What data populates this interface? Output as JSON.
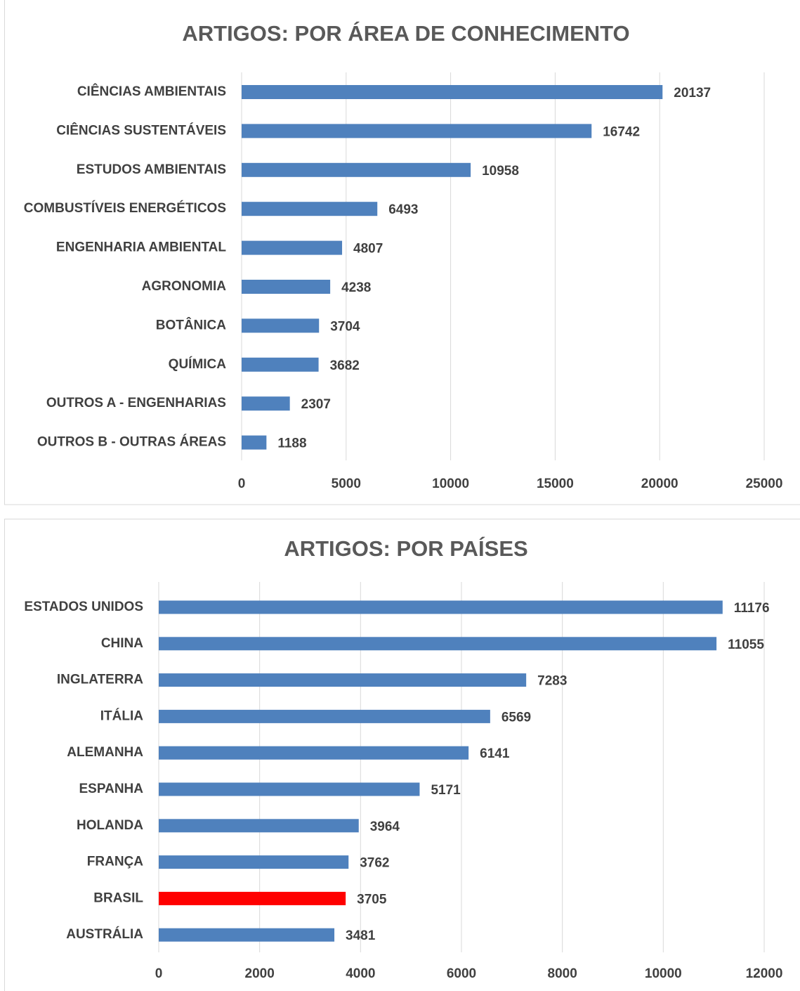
{
  "chart_data": [
    {
      "type": "bar",
      "orientation": "horizontal",
      "title": "ARTIGOS: POR ÁREA DE CONHECIMENTO",
      "categories": [
        "CIÊNCIAS AMBIENTAIS",
        "CIÊNCIAS SUSTENTÁVEIS",
        "ESTUDOS AMBIENTAIS",
        "COMBUSTÍVEIS ENERGÉTICOS",
        "ENGENHARIA AMBIENTAL",
        "AGRONOMIA",
        "BOTÂNICA",
        "QUÍMICA",
        "OUTROS A - ENGENHARIAS",
        "OUTROS B - OUTRAS ÁREAS"
      ],
      "values": [
        20137,
        16742,
        10958,
        6493,
        4807,
        4238,
        3704,
        3682,
        2307,
        1188
      ],
      "colors": [
        "#4f81bd",
        "#4f81bd",
        "#4f81bd",
        "#4f81bd",
        "#4f81bd",
        "#4f81bd",
        "#4f81bd",
        "#4f81bd",
        "#4f81bd",
        "#4f81bd"
      ],
      "xlim": [
        0,
        25000
      ],
      "xticks": [
        0,
        5000,
        10000,
        15000,
        20000,
        25000
      ],
      "grid": true
    },
    {
      "type": "bar",
      "orientation": "horizontal",
      "title": "ARTIGOS: POR PAÍSES",
      "categories": [
        "ESTADOS UNIDOS",
        "CHINA",
        "INGLATERRA",
        "ITÁLIA",
        "ALEMANHA",
        "ESPANHA",
        "HOLANDA",
        "FRANÇA",
        "BRASIL",
        "AUSTRÁLIA"
      ],
      "values": [
        11176,
        11055,
        7283,
        6569,
        6141,
        5171,
        3964,
        3762,
        3705,
        3481
      ],
      "colors": [
        "#4f81bd",
        "#4f81bd",
        "#4f81bd",
        "#4f81bd",
        "#4f81bd",
        "#4f81bd",
        "#4f81bd",
        "#4f81bd",
        "#ff0000",
        "#4f81bd"
      ],
      "xlim": [
        0,
        12000
      ],
      "xticks": [
        0,
        2000,
        4000,
        6000,
        8000,
        10000,
        12000
      ],
      "grid": true
    }
  ]
}
